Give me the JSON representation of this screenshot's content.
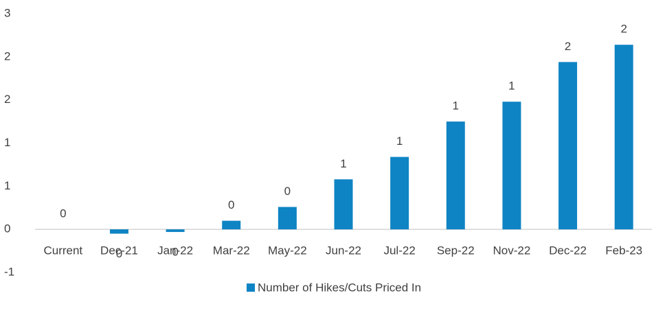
{
  "chart_data": {
    "type": "bar",
    "categories": [
      "Current",
      "Dec-21",
      "Jan-22",
      "Mar-22",
      "May-22",
      "Jun-22",
      "Jul-22",
      "Sep-22",
      "Nov-22",
      "Dec-22",
      "Feb-23"
    ],
    "series": [
      {
        "name": "Number of Hikes/Cuts Priced In",
        "color": "#0e84c4",
        "values": [
          0,
          -0.05,
          -0.03,
          0.1,
          0.26,
          0.58,
          0.84,
          1.25,
          1.48,
          1.94,
          2.14
        ],
        "value_labels": [
          "0",
          "0",
          "0",
          "0",
          "0",
          "1",
          "1",
          "1",
          "1",
          "2",
          "2"
        ]
      }
    ],
    "ylim": [
      -0.5,
      2.5
    ],
    "yticks": [
      {
        "value": -0.5,
        "label": "-1"
      },
      0,
      {
        "value": 0.5,
        "label": "1"
      },
      1,
      {
        "value": 1.5,
        "label": "2"
      },
      2,
      {
        "value": 2.5,
        "label": "3"
      }
    ],
    "grid": false,
    "legend": "bottom"
  }
}
